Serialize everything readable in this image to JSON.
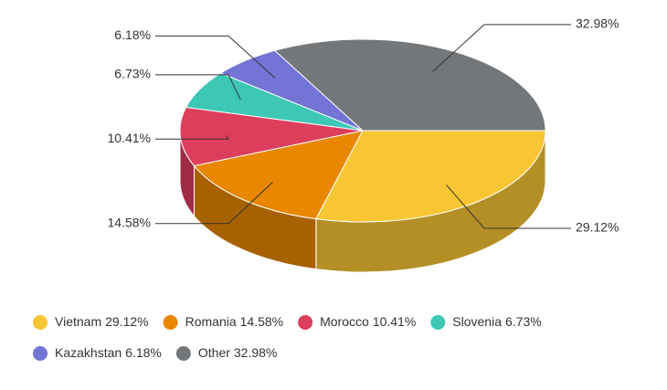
{
  "chart_data": {
    "type": "pie3d",
    "categories": [
      "Vietnam",
      "Romania",
      "Morocco",
      "Slovenia",
      "Kazakhstan",
      "Other"
    ],
    "values": [
      29.12,
      14.58,
      10.41,
      6.73,
      6.18,
      32.98
    ],
    "value_labels": [
      "29.12%",
      "14.58%",
      "10.41%",
      "6.73%",
      "6.18%",
      "32.98%"
    ],
    "colors": [
      "#f9c633",
      "#e98700",
      "#dd3e5c",
      "#3dc7b5",
      "#7274d6",
      "#737779"
    ],
    "legend": "bottom"
  }
}
